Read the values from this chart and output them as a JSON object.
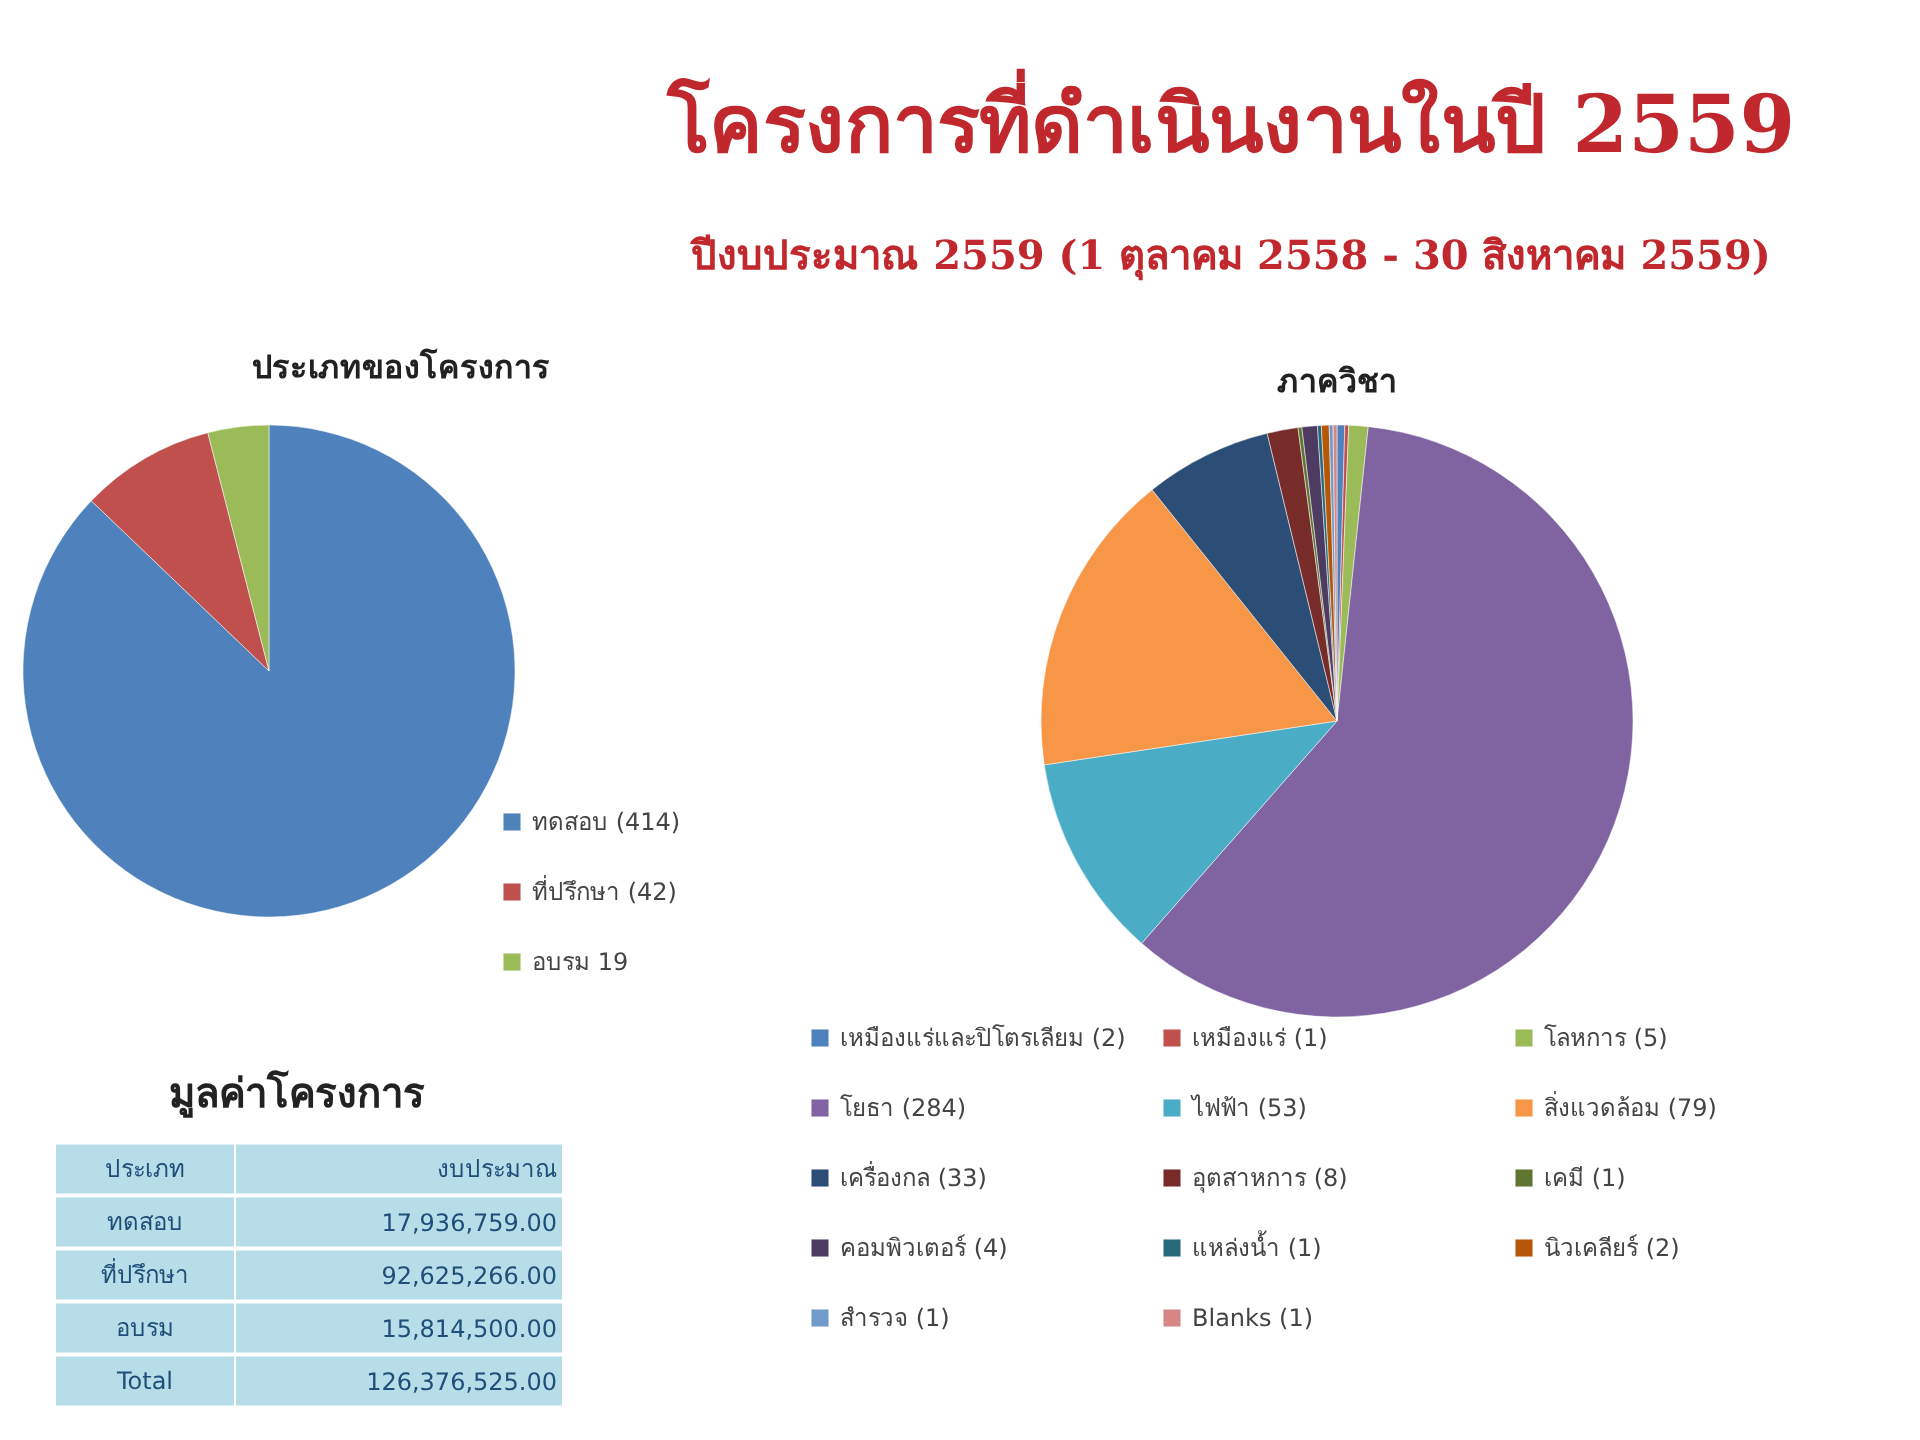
{
  "chart_data": [
    {
      "type": "other",
      "title": "โครงการที่ดำเนินงานในปี 2559",
      "subtitle": "ปีงบประมาณ 2559 (1 ตุลาคม 2558 - 30 สิงหาคม 2559)"
    },
    {
      "type": "pie",
      "title": "ประเภทของโครงการ",
      "categories": [
        "ทดสอบ (414)",
        "ที่ปรึกษา (42)",
        "อบรม 19"
      ],
      "values": [
        414,
        42,
        19
      ],
      "colors": [
        "#4f81bd",
        "#c0504d",
        "#9bbb59"
      ],
      "legend": "bottom right"
    },
    {
      "type": "pie",
      "title": "ภาควิชา",
      "categories": [
        "เหมืองแร่และปิโตรเลียม (2)",
        "เหมืองแร่ (1)",
        "โลหการ (5)",
        "โยธา (284)",
        "ไฟฟ้า (53)",
        "สิ่งแวดล้อม (79)",
        "เครื่องกล (33)",
        "อุตสาหการ (8)",
        "เคมี (1)",
        "คอมพิวเตอร์ (4)",
        "แหล่งน้ำ (1)",
        "นิวเคลียร์ (2)",
        "สำรวจ (1)",
        "Blanks (1)"
      ],
      "values": [
        2,
        1,
        5,
        284,
        53,
        79,
        33,
        8,
        1,
        4,
        1,
        2,
        1,
        1
      ],
      "colors": [
        "#4f81bd",
        "#c0504d",
        "#9bbb59",
        "#8064a2",
        "#4bacc6",
        "#f79646",
        "#2c4d75",
        "#772c2a",
        "#5f7530",
        "#4d3b62",
        "#276a7c",
        "#b65708",
        "#729aca",
        "#d68785"
      ],
      "legend": "bottom"
    },
    {
      "type": "other",
      "title": "มูลค่าโครงการ",
      "xlabel": "ประเภท",
      "ylabel": "งบประมาณ",
      "categories": [
        "ทดสอบ",
        "ที่ปรึกษา",
        "อบรม",
        "Total"
      ],
      "values": [
        17936759.0,
        92625266.0,
        15814500.0,
        126376525.0
      ],
      "value_labels": [
        "17,936,759.00",
        "92,625,266.00",
        "15,814,500.00",
        "126,376,525.00"
      ]
    }
  ]
}
